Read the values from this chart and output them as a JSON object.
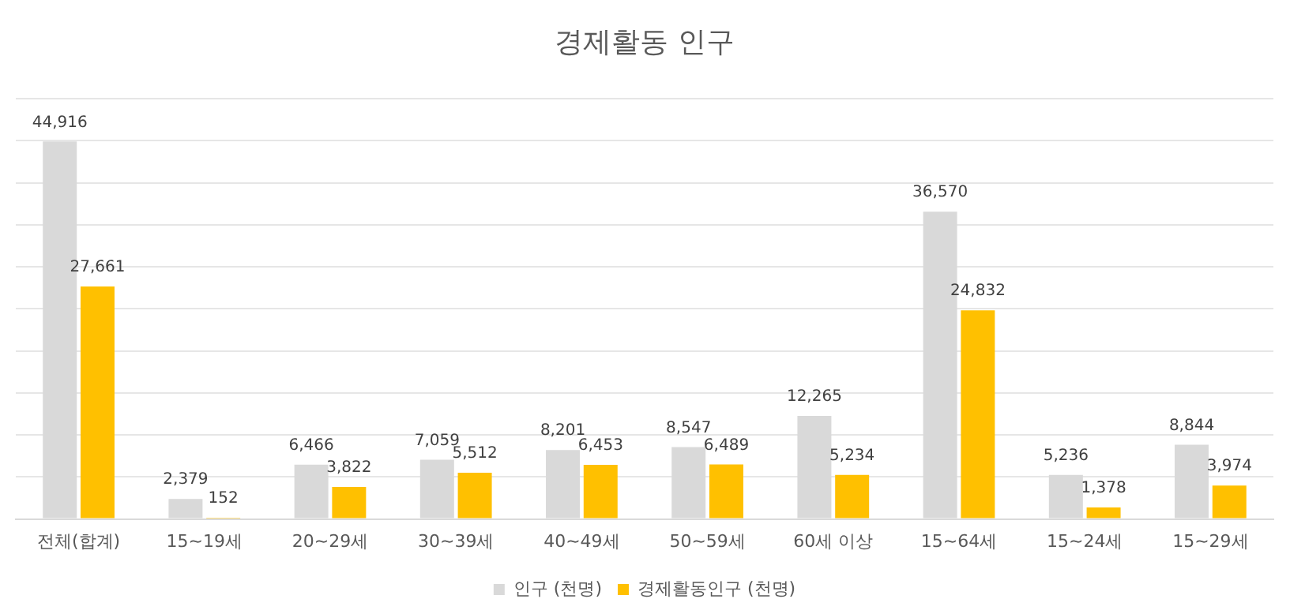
{
  "chart_data": {
    "type": "bar",
    "title": "경제활동 인구",
    "categories": [
      "전체(합계)",
      "15~19세",
      "20~29세",
      "30~39세",
      "40~49세",
      "50~59세",
      "60세 이상",
      "15~64세",
      "15~24세",
      "15~29세"
    ],
    "series": [
      {
        "name": "인구 (천명)",
        "color": "#d9d9d9",
        "values": [
          44916,
          2379,
          6466,
          7059,
          8201,
          8547,
          12265,
          36570,
          5236,
          8844
        ],
        "value_labels": [
          "44,916",
          "2,379",
          "6,466",
          "7,059",
          "8,201",
          "8,547",
          "12,265",
          "36,570",
          "5,236",
          "8,844"
        ]
      },
      {
        "name": "경제활동인구 (천명)",
        "color": "#ffc000",
        "values": [
          27661,
          152,
          3822,
          5512,
          6453,
          6489,
          5234,
          24832,
          1378,
          3974
        ],
        "value_labels": [
          "27,661",
          "152",
          "3,822",
          "5,512",
          "6,453",
          "6,489",
          "5,234",
          "24,832",
          "1,378",
          "3,974"
        ]
      }
    ],
    "ylim": [
      0,
      50000
    ],
    "yticks": [
      {
        "value": 0,
        "label": null
      },
      {
        "value": 5000,
        "label": null
      },
      {
        "value": 10000,
        "label": null
      },
      {
        "value": 15000,
        "label": null
      },
      {
        "value": 20000,
        "label": null
      },
      {
        "value": 25000,
        "label": null
      },
      {
        "value": 30000,
        "label": null
      },
      {
        "value": 35000,
        "label": null
      },
      {
        "value": 40000,
        "label": null
      },
      {
        "value": 45000,
        "label": null
      },
      {
        "value": 50000,
        "label": null
      }
    ],
    "tick_labels": "x",
    "grid": "y",
    "legend": "bottom"
  }
}
